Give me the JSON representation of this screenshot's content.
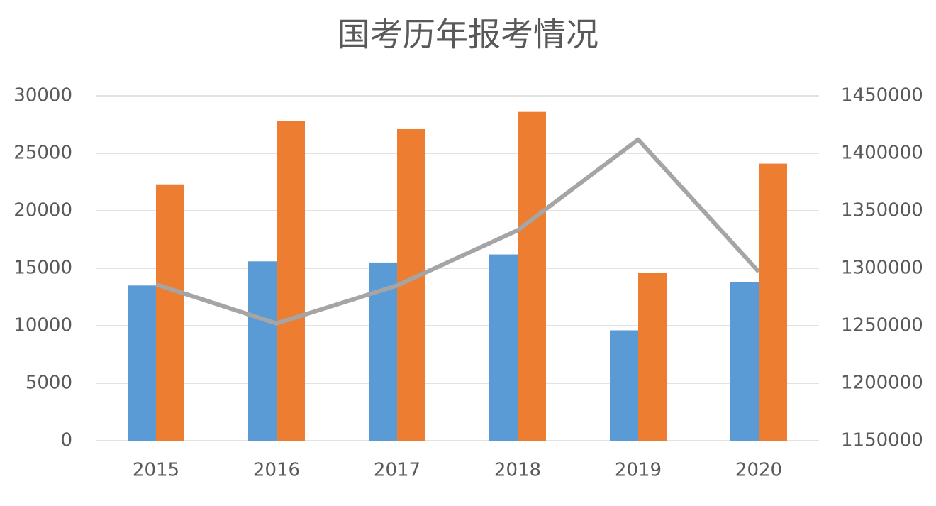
{
  "chart_data": {
    "type": "bar-line",
    "title": "国考历年报考情况",
    "categories": [
      "2015",
      "2016",
      "2017",
      "2018",
      "2019",
      "2020"
    ],
    "series": [
      {
        "type": "bar",
        "color": "#5b9bd5",
        "values": [
          13500,
          15600,
          15500,
          16200,
          9600,
          13800
        ]
      },
      {
        "type": "bar",
        "color": "#ed7d31",
        "values": [
          22300,
          27800,
          27100,
          28600,
          14600,
          24100
        ]
      },
      {
        "type": "line",
        "axis": "y2",
        "color": "#a5a5a5",
        "values": [
          1286000,
          1252000,
          1285000,
          1333000,
          1412000,
          1297000
        ]
      }
    ],
    "ylim": [
      0,
      30000
    ],
    "yticks": [
      0,
      5000,
      10000,
      15000,
      20000,
      25000,
      30000
    ],
    "y2lim": [
      1150000,
      1450000
    ],
    "y2ticks": [
      1150000,
      1200000,
      1250000,
      1300000,
      1350000,
      1400000,
      1450000
    ],
    "grid": true
  }
}
